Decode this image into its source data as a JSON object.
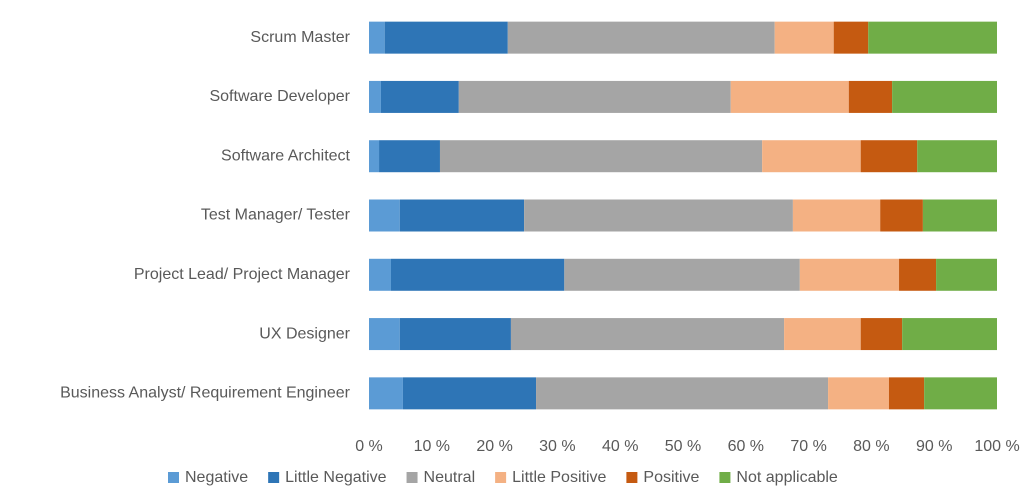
{
  "chart_data": {
    "type": "stacked_barh",
    "categories": [
      "Scrum Master",
      "Software Developer",
      "Software Architect",
      "Test Manager/ Tester",
      "Project Lead/ Project Manager",
      "UX Designer",
      "Business Analyst/ Requirement Engineer"
    ],
    "series": [
      {
        "name": "Negative",
        "color": "#5b9bd5",
        "values": [
          2.5,
          1.9,
          1.6,
          4.9,
          3.5,
          4.9,
          5.4
        ]
      },
      {
        "name": "Little Negative",
        "color": "#2e75b6",
        "values": [
          19.6,
          12.4,
          9.7,
          19.8,
          27.6,
          17.7,
          21.2
        ]
      },
      {
        "name": "Neutral",
        "color": "#a5a5a5",
        "values": [
          42.5,
          43.3,
          51.3,
          42.8,
          37.5,
          43.5,
          46.5
        ]
      },
      {
        "name": "Little Positive",
        "color": "#f4b183",
        "values": [
          9.4,
          18.8,
          15.7,
          13.9,
          15.8,
          12.2,
          9.7
        ]
      },
      {
        "name": "Positive",
        "color": "#c55a11",
        "values": [
          5.5,
          6.9,
          9.0,
          6.8,
          5.9,
          6.6,
          5.6
        ]
      },
      {
        "name": "Not applicable",
        "color": "#70ad47",
        "values": [
          20.5,
          16.7,
          12.7,
          11.8,
          9.7,
          15.1,
          11.6
        ]
      }
    ],
    "xlim": [
      0,
      100
    ],
    "xticks": [
      {
        "value": 0,
        "label": "0 %"
      },
      {
        "value": 10,
        "label": "10 %"
      },
      {
        "value": 20,
        "label": "20 %"
      },
      {
        "value": 30,
        "label": "30 %"
      },
      {
        "value": 40,
        "label": "40 %"
      },
      {
        "value": 50,
        "label": "50 %"
      },
      {
        "value": 60,
        "label": "60 %"
      },
      {
        "value": 70,
        "label": "70 %"
      },
      {
        "value": 80,
        "label": "80 %"
      },
      {
        "value": 90,
        "label": "90 %"
      },
      {
        "value": 100,
        "label": "100 %"
      }
    ],
    "legend": "bottom"
  }
}
